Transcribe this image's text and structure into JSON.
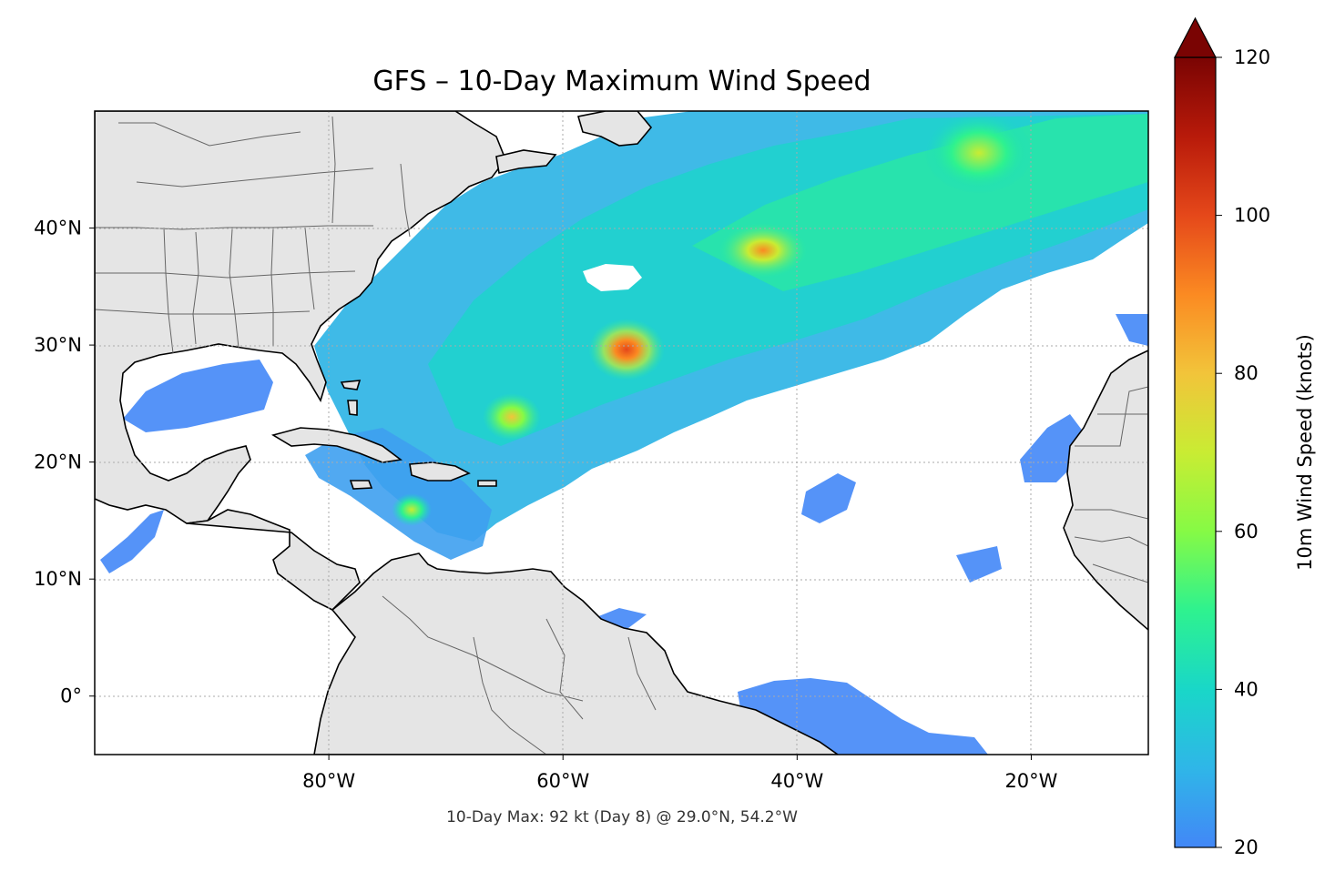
{
  "title": "GFS – 10-Day Maximum Wind Speed",
  "footnote": "10-Day Max: 92 kt (Day 8) @ 29.0°N, 54.2°W",
  "map": {
    "lon_range": [
      -100,
      -10
    ],
    "lat_range": [
      -5,
      50
    ],
    "lat_ticks": [
      {
        "value": 40,
        "label": "40°N"
      },
      {
        "value": 30,
        "label": "30°N"
      },
      {
        "value": 20,
        "label": "20°N"
      },
      {
        "value": 10,
        "label": "10°N"
      },
      {
        "value": 0,
        "label": "0°"
      }
    ],
    "lon_ticks": [
      {
        "value": -80,
        "label": "80°W"
      },
      {
        "value": -60,
        "label": "60°W"
      },
      {
        "value": -40,
        "label": "40°W"
      },
      {
        "value": -20,
        "label": "20°W"
      }
    ],
    "gridlines": "dotted",
    "land_color": "#e5e5e5",
    "ocean_no_data_color": "#ffffff"
  },
  "colorbar": {
    "label": "10m Wind Speed (knots)",
    "min": 20,
    "max": 120,
    "extend": "max",
    "ticks": [
      {
        "value": 20,
        "label": "20"
      },
      {
        "value": 40,
        "label": "40"
      },
      {
        "value": 60,
        "label": "60"
      },
      {
        "value": 80,
        "label": "80"
      },
      {
        "value": 100,
        "label": "100"
      },
      {
        "value": 120,
        "label": "120"
      }
    ],
    "colors": [
      "#4287f7",
      "#2fb6e8",
      "#19d7c8",
      "#2ef28f",
      "#86fa45",
      "#c9ec33",
      "#f2c43a",
      "#fb8a22",
      "#e5481a",
      "#b81a0a",
      "#7a0403"
    ]
  },
  "chart_data": {
    "type": "heatmap",
    "title": "GFS – 10-Day Maximum Wind Speed",
    "units": "knots",
    "peak": {
      "value": 92,
      "day": 8,
      "lat": 29.0,
      "lon": -54.2
    },
    "features": [
      {
        "lat": 29.0,
        "lon": -54.2,
        "max_kt": 92
      },
      {
        "lat": 38.0,
        "lon": -43.0,
        "max_kt": 78
      },
      {
        "lat": 23.8,
        "lon": -64.5,
        "max_kt": 70
      },
      {
        "lat": 16.0,
        "lon": -73.0,
        "max_kt": 60
      },
      {
        "lat": 45.5,
        "lon": -24.0,
        "max_kt": 55
      }
    ]
  }
}
